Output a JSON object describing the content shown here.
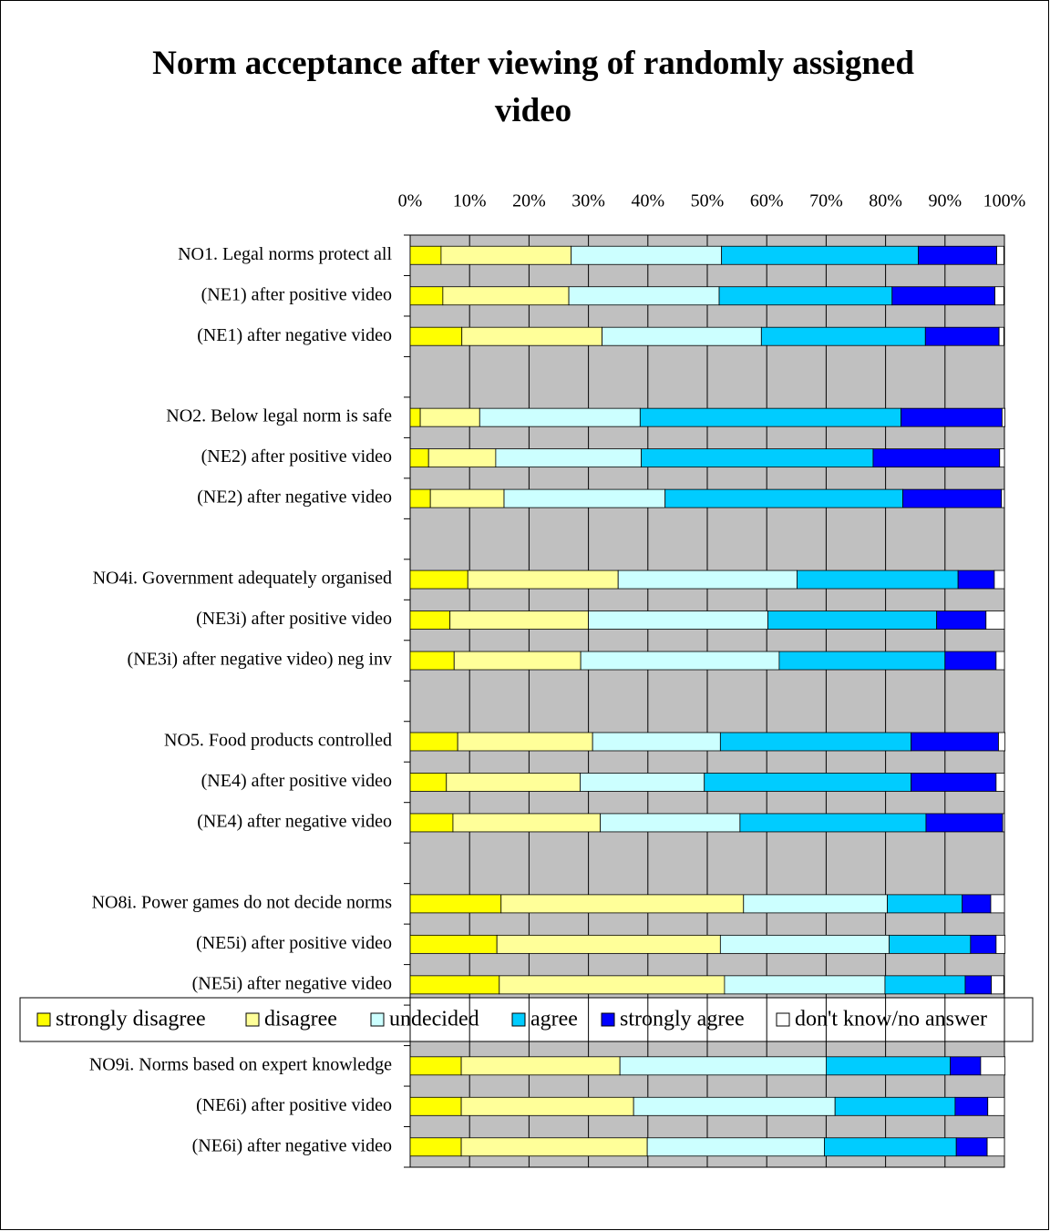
{
  "chart_data": {
    "type": "stacked-bar-horizontal",
    "title": "Norm acceptance after viewing of randomly assigned video",
    "categories": [
      "NO1. Legal norms protect all",
      "(NE1) after positive video",
      "(NE1) after negative video",
      null,
      "NO2. Below legal norm is safe",
      "(NE2) after positive video",
      "(NE2) after negative video",
      null,
      "NO4i. Government adequately organised",
      "(NE3i) after positive video",
      "(NE3i) after negative video) neg inv",
      null,
      "NO5. Food products controlled",
      "(NE4) after positive video",
      "(NE4) after negative video",
      null,
      "NO8i. Power games do not decide norms",
      "(NE5i) after positive video",
      "(NE5i) after negative video",
      null,
      "NO9i. Norms based on expert knowledge",
      "(NE6i) after positive video",
      "(NE6i) after negative video"
    ],
    "series": [
      {
        "name": "strongly disagree",
        "color": "#ffff00",
        "values": [
          5.2,
          5.5,
          8.7,
          null,
          1.7,
          3.1,
          3.4,
          null,
          9.7,
          6.7,
          7.4,
          null,
          8.0,
          6.1,
          7.2,
          null,
          15.3,
          14.6,
          15.0,
          null,
          8.6,
          8.6,
          8.6
        ]
      },
      {
        "name": "disagree",
        "color": "#ffff99",
        "values": [
          21.9,
          21.2,
          23.6,
          null,
          10.0,
          11.3,
          12.4,
          null,
          25.3,
          23.3,
          21.3,
          null,
          22.7,
          22.5,
          24.8,
          null,
          40.8,
          37.6,
          37.9,
          null,
          26.7,
          29.0,
          31.3
        ]
      },
      {
        "name": "undecided",
        "color": "#ccffff",
        "values": [
          25.3,
          25.3,
          26.8,
          null,
          27.0,
          24.5,
          27.1,
          null,
          30.1,
          30.2,
          33.4,
          null,
          21.5,
          20.9,
          23.5,
          null,
          24.2,
          28.4,
          27.0,
          null,
          34.7,
          33.9,
          29.8
        ]
      },
      {
        "name": "agree",
        "color": "#00ccff",
        "values": [
          33.1,
          29.1,
          27.6,
          null,
          43.9,
          39.0,
          40.0,
          null,
          27.1,
          28.4,
          27.9,
          null,
          32.1,
          34.8,
          31.3,
          null,
          12.6,
          13.7,
          13.5,
          null,
          20.9,
          20.2,
          22.2
        ]
      },
      {
        "name": "strongly agree",
        "color": "#0000ff",
        "values": [
          13.2,
          17.3,
          12.4,
          null,
          17.0,
          21.3,
          16.6,
          null,
          6.1,
          8.3,
          8.6,
          null,
          14.7,
          14.3,
          12.9,
          null,
          4.8,
          4.3,
          4.4,
          null,
          5.1,
          5.5,
          5.2
        ]
      },
      {
        "name": "don't know/no answer",
        "color": "#ffffff",
        "values": [
          1.2,
          1.5,
          0.8,
          null,
          0.5,
          0.8,
          0.5,
          null,
          1.7,
          3.1,
          1.4,
          null,
          1.1,
          1.4,
          0.3,
          null,
          2.3,
          1.5,
          2.1,
          null,
          4.1,
          2.8,
          2.9
        ]
      }
    ],
    "xlim": [
      0,
      100
    ],
    "xticks": [
      {
        "value": 0,
        "label": "0%"
      },
      {
        "value": 10,
        "label": "10%"
      },
      {
        "value": 20,
        "label": "20%"
      },
      {
        "value": 30,
        "label": "30%"
      },
      {
        "value": 40,
        "label": "40%"
      },
      {
        "value": 50,
        "label": "50%"
      },
      {
        "value": 60,
        "label": "60%"
      },
      {
        "value": 70,
        "label": "70%"
      },
      {
        "value": 80,
        "label": "80%"
      },
      {
        "value": 90,
        "label": "90%"
      },
      {
        "value": 100,
        "label": "100%"
      }
    ],
    "grid": true,
    "legend": "bottom"
  }
}
